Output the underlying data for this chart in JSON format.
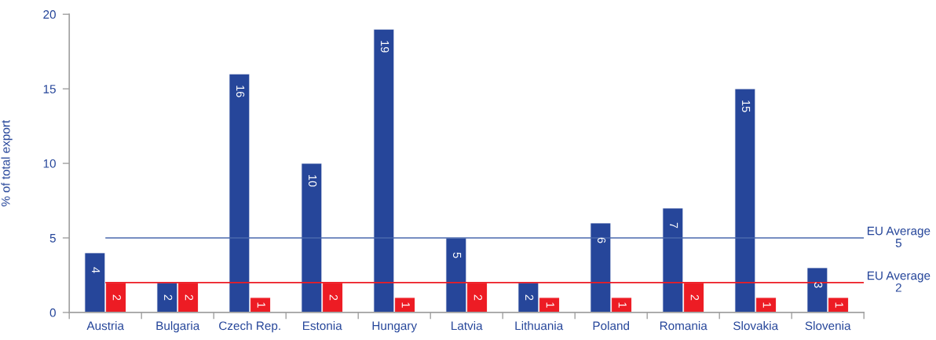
{
  "chart_data": {
    "type": "bar",
    "ylabel": "% of total export",
    "categories": [
      "Austria",
      "Bulgaria",
      "Czech Rep.",
      "Estonia",
      "Hungary",
      "Latvia",
      "Lithuania",
      "Poland",
      "Romania",
      "Slovakia",
      "Slovenia"
    ],
    "series": [
      {
        "color": "#26469a",
        "values": [
          4,
          2,
          16,
          10,
          19,
          5,
          2,
          6,
          7,
          15,
          3
        ]
      },
      {
        "color": "#ed1c24",
        "values": [
          2,
          2,
          1,
          2,
          1,
          2,
          1,
          1,
          2,
          1,
          1
        ]
      }
    ],
    "ylim": [
      0,
      20
    ],
    "yticks": [
      0,
      5,
      10,
      15,
      20
    ],
    "ref_lines": [
      {
        "axis": "y",
        "value": 5,
        "label": "EU Average\n5",
        "color": "#4a68ad"
      },
      {
        "axis": "y",
        "value": 2,
        "label": "EU Average\n2",
        "color": "#ed1c24"
      }
    ],
    "data_labels": true,
    "grid": false,
    "legend": false
  }
}
